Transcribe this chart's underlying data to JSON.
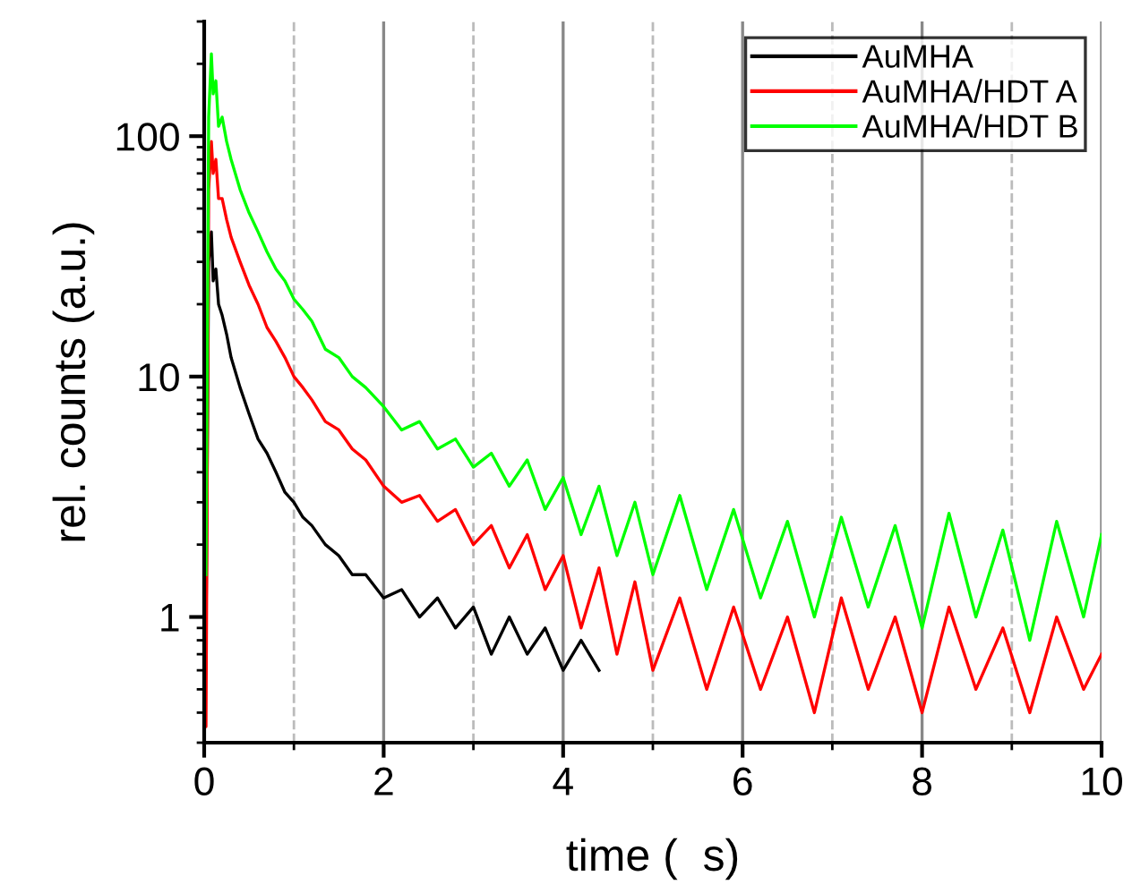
{
  "chart_data": {
    "type": "line",
    "xlabel": "time (  s)",
    "ylabel": "rel. counts (a.u.)",
    "xlim": [
      0,
      10
    ],
    "xticks": [
      0,
      2,
      4,
      6,
      8,
      10
    ],
    "ylim": [
      0.3,
      300
    ],
    "yticks": [
      1,
      10,
      100
    ],
    "log": "y",
    "grid": "x",
    "legend": "top right",
    "marker": "none",
    "line_style": "solid",
    "series": [
      {
        "name": "AuMHA",
        "color": "#000000",
        "x": [
          0,
          0.02,
          0.05,
          0.08,
          0.1,
          0.13,
          0.16,
          0.2,
          0.25,
          0.3,
          0.4,
          0.5,
          0.6,
          0.7,
          0.8,
          0.9,
          1.0,
          1.1,
          1.2,
          1.35,
          1.5,
          1.65,
          1.8,
          2.0,
          2.2,
          2.4,
          2.6,
          2.8,
          3.0,
          3.2,
          3.4,
          3.6,
          3.8,
          4.0,
          4.2,
          4.4
        ],
        "values": [
          0.5,
          0.8,
          30,
          40,
          25,
          28,
          20,
          18,
          15,
          12,
          9,
          7,
          5.5,
          4.8,
          4,
          3.3,
          3,
          2.6,
          2.4,
          2,
          1.8,
          1.5,
          1.5,
          1.2,
          1.3,
          1.0,
          1.2,
          0.9,
          1.1,
          0.7,
          1.0,
          0.7,
          0.9,
          0.6,
          0.8,
          0.6
        ]
      },
      {
        "name": "AuMHA/HDT A",
        "color": "#ff0000",
        "x": [
          0,
          0.02,
          0.05,
          0.08,
          0.1,
          0.13,
          0.16,
          0.2,
          0.25,
          0.3,
          0.4,
          0.5,
          0.6,
          0.7,
          0.8,
          0.9,
          1.0,
          1.1,
          1.2,
          1.35,
          1.5,
          1.65,
          1.8,
          2.0,
          2.2,
          2.4,
          2.6,
          2.8,
          3.0,
          3.2,
          3.4,
          3.6,
          3.8,
          4.0,
          4.2,
          4.4,
          4.6,
          4.8,
          5.0,
          5.3,
          5.6,
          5.9,
          6.2,
          6.5,
          6.8,
          7.1,
          7.4,
          7.7,
          8.0,
          8.3,
          8.6,
          8.9,
          9.2,
          9.5,
          9.8,
          10.0
        ],
        "values": [
          0.4,
          0.35,
          60,
          95,
          70,
          80,
          55,
          55,
          45,
          38,
          30,
          24,
          20,
          16,
          14,
          12,
          10,
          9,
          8,
          6.5,
          6,
          5,
          4.5,
          3.5,
          3,
          3.2,
          2.5,
          2.8,
          2,
          2.4,
          1.6,
          2.2,
          1.3,
          1.8,
          0.9,
          1.6,
          0.7,
          1.4,
          0.6,
          1.2,
          0.5,
          1.1,
          0.5,
          1.0,
          0.4,
          1.2,
          0.5,
          1.0,
          0.4,
          1.1,
          0.5,
          0.9,
          0.4,
          1.0,
          0.5,
          0.7
        ]
      },
      {
        "name": "AuMHA/HDT B",
        "color": "#00ff00",
        "x": [
          0.02,
          0.05,
          0.08,
          0.1,
          0.13,
          0.16,
          0.2,
          0.25,
          0.3,
          0.4,
          0.5,
          0.6,
          0.7,
          0.8,
          0.9,
          1.0,
          1.1,
          1.2,
          1.35,
          1.5,
          1.65,
          1.8,
          2.0,
          2.2,
          2.4,
          2.6,
          2.8,
          3.0,
          3.2,
          3.4,
          3.6,
          3.8,
          4.0,
          4.2,
          4.4,
          4.6,
          4.8,
          5.0,
          5.3,
          5.6,
          5.9,
          6.2,
          6.5,
          6.8,
          7.1,
          7.4,
          7.7,
          8.0,
          8.3,
          8.6,
          8.9,
          9.2,
          9.5,
          9.8,
          10.0
        ],
        "values": [
          1.5,
          120,
          220,
          150,
          170,
          110,
          120,
          95,
          80,
          60,
          48,
          40,
          33,
          28,
          25,
          21,
          19,
          17,
          13,
          12,
          10,
          9,
          7.5,
          6,
          6.5,
          5,
          5.5,
          4.2,
          4.8,
          3.5,
          4.5,
          2.8,
          3.8,
          2.2,
          3.5,
          1.8,
          3.0,
          1.5,
          3.2,
          1.3,
          2.8,
          1.2,
          2.5,
          1.0,
          2.6,
          1.1,
          2.4,
          0.9,
          2.7,
          1.0,
          2.3,
          0.8,
          2.5,
          1.0,
          2.2
        ]
      }
    ]
  }
}
